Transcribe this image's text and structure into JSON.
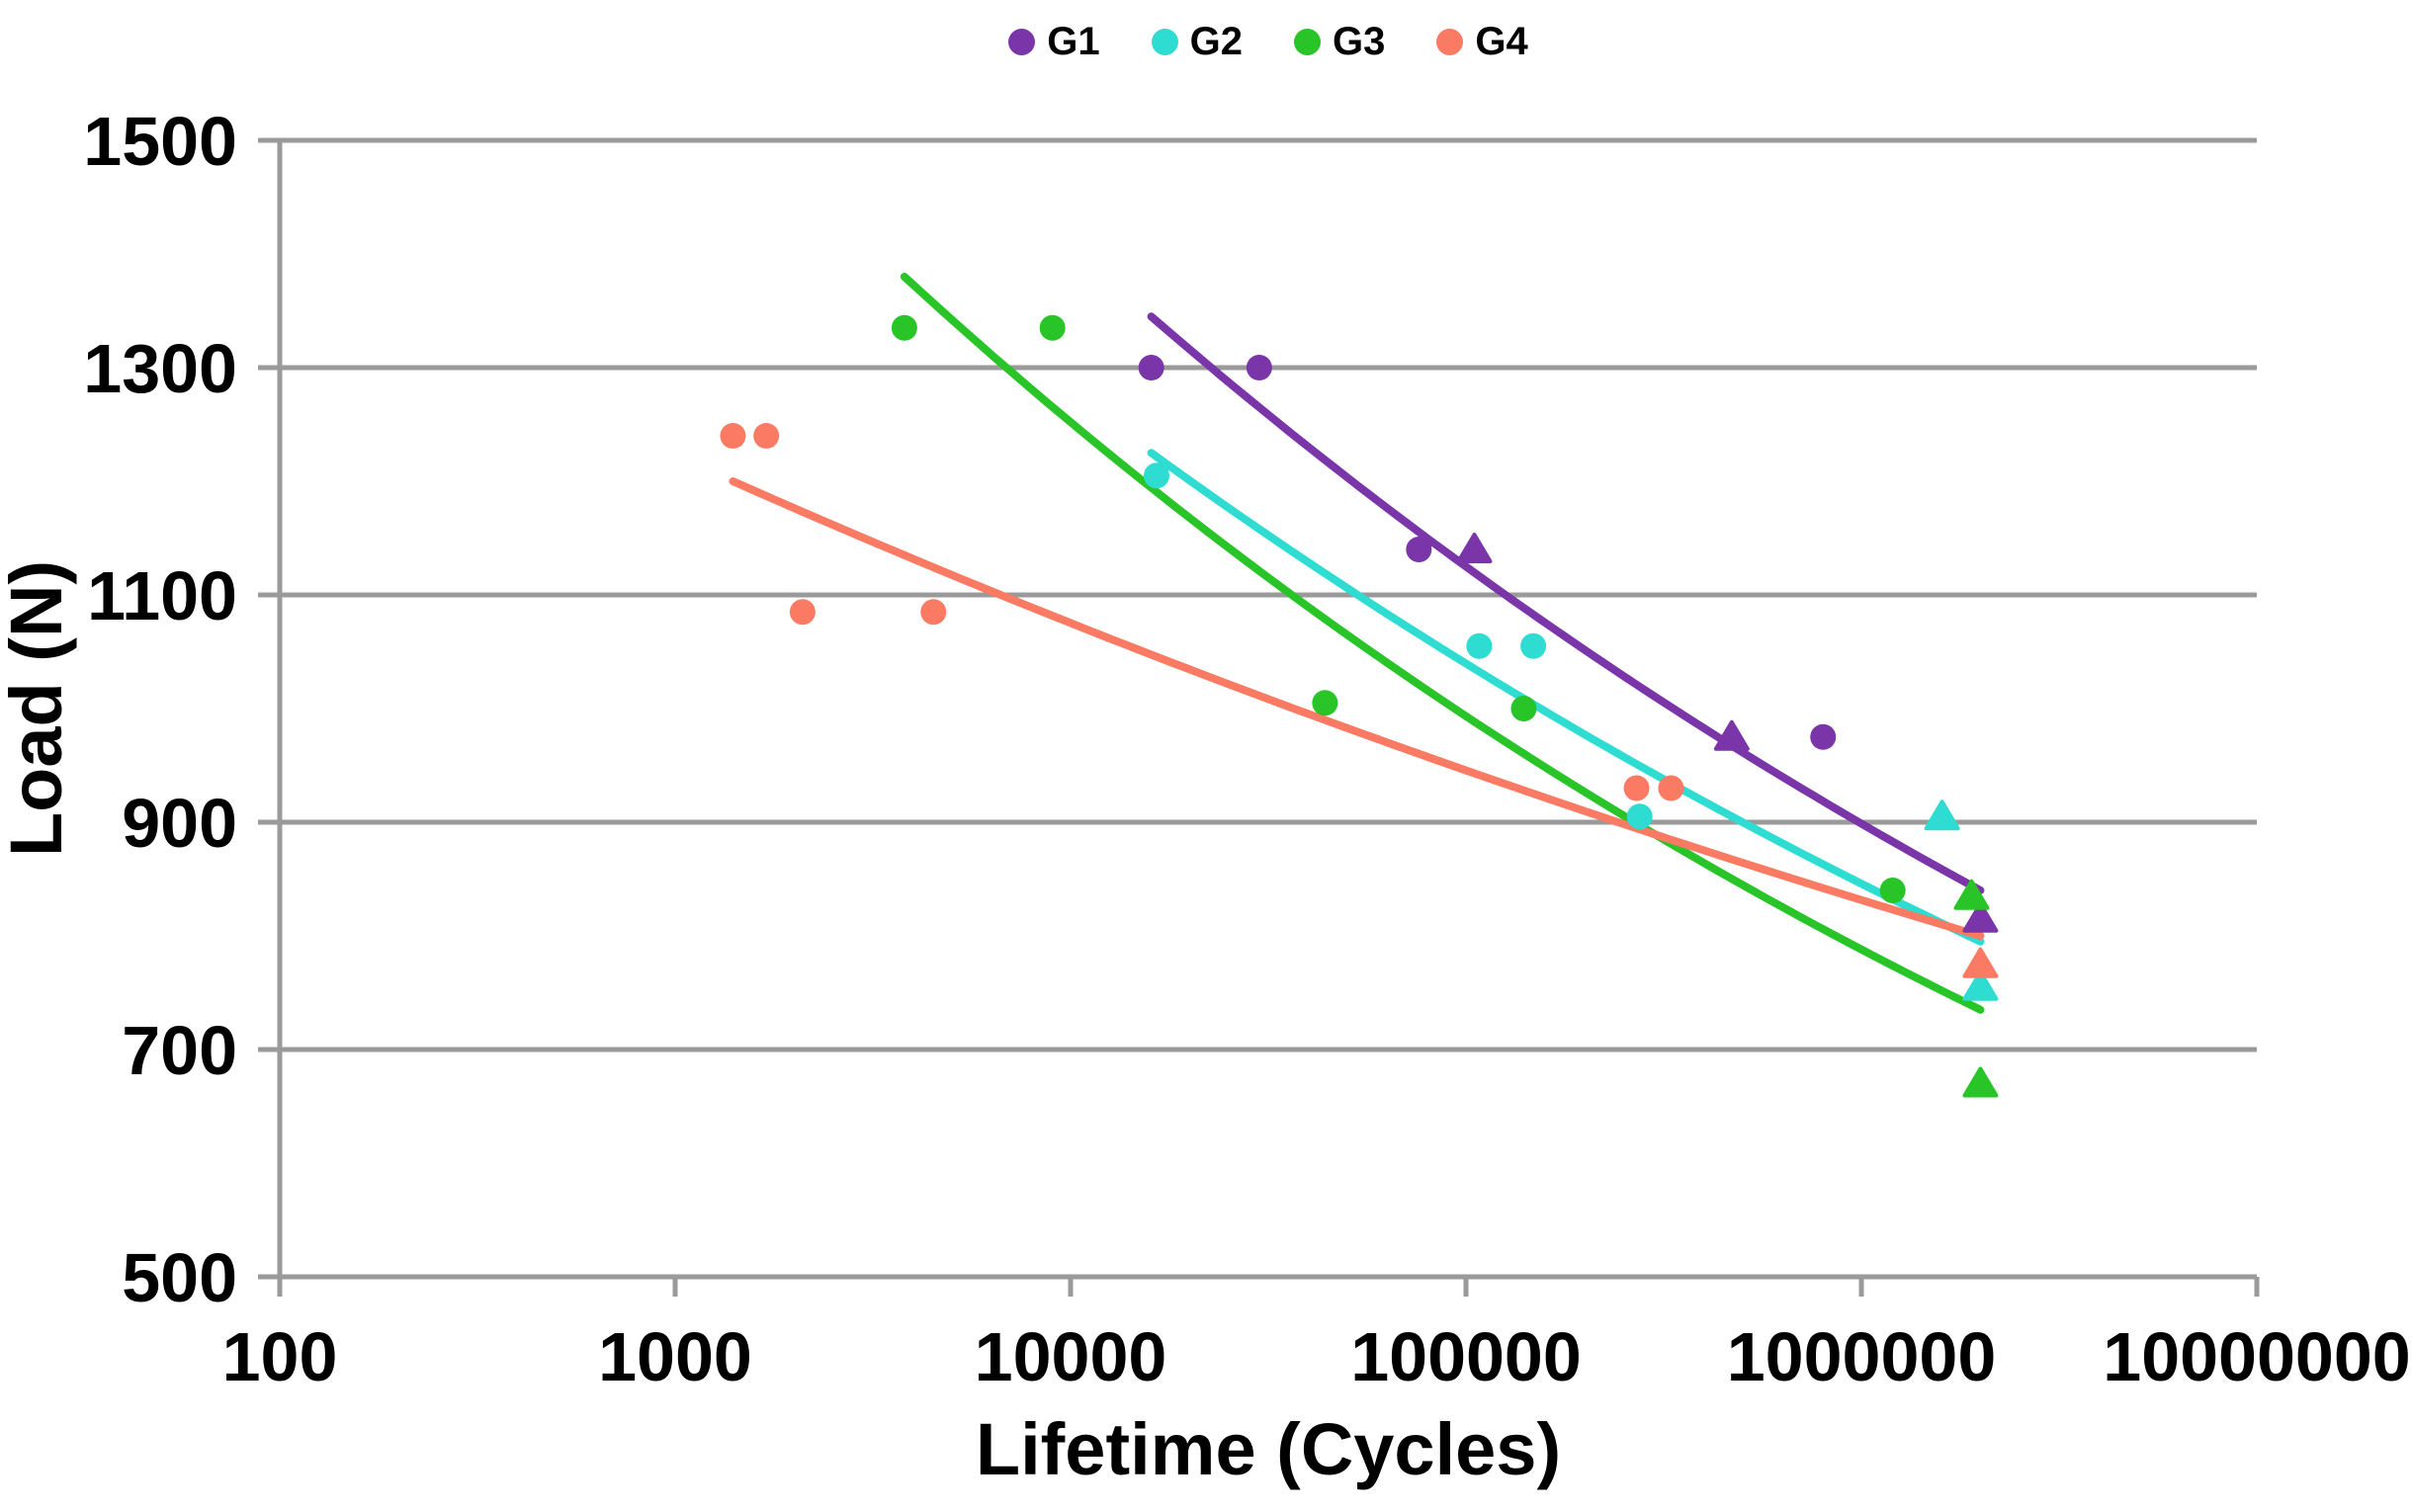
{
  "chart_data": {
    "type": "scatter",
    "title": "",
    "xlabel": "Lifetime (Cycles)",
    "ylabel": "Load (N)",
    "x_scale": "log",
    "y_scale": "linear",
    "xlim": [
      100,
      10000000
    ],
    "ylim": [
      500,
      1500
    ],
    "x_ticks": [
      100,
      1000,
      10000,
      100000,
      1000000,
      10000000
    ],
    "y_ticks": [
      1500,
      1300,
      1100,
      900,
      700,
      500
    ],
    "grid": "horizontal",
    "grid_color": "#9A9A9A",
    "axis_color": "#9A9A9A",
    "text_color": "#000000",
    "legend_position": "top-center",
    "series": [
      {
        "name": "G1",
        "color": "#7A35A8",
        "circles": [
          [
            16000,
            1300
          ],
          [
            30000,
            1300
          ],
          [
            76000,
            1140
          ],
          [
            800000,
            975
          ]
        ],
        "triangles": [
          [
            105000,
            1140
          ],
          [
            470000,
            975
          ],
          [
            2000000,
            815
          ]
        ],
        "trend": {
          "type": "power",
          "x1": 16000,
          "y1": 1345,
          "x2": 2000000,
          "y2": 840
        }
      },
      {
        "name": "G2",
        "color": "#2EDCD2",
        "circles": [
          [
            16500,
            1205
          ],
          [
            108000,
            1055
          ],
          [
            148000,
            1055
          ],
          [
            275000,
            905
          ]
        ],
        "triangles": [
          [
            1600000,
            905
          ],
          [
            2000000,
            755
          ]
        ],
        "trend": {
          "type": "power",
          "x1": 16000,
          "y1": 1225,
          "x2": 2000000,
          "y2": 795
        }
      },
      {
        "name": "G3",
        "color": "#28C428",
        "circles": [
          [
            3800,
            1335
          ],
          [
            9000,
            1335
          ],
          [
            44000,
            1005
          ],
          [
            140000,
            1000
          ],
          [
            1200000,
            840
          ]
        ],
        "triangles": [
          [
            1900000,
            835
          ],
          [
            2000000,
            670
          ]
        ],
        "trend": {
          "type": "power",
          "x1": 3800,
          "y1": 1380,
          "x2": 2000000,
          "y2": 735
        }
      },
      {
        "name": "G4",
        "color": "#FA7A63",
        "circles": [
          [
            1400,
            1240
          ],
          [
            1700,
            1240
          ],
          [
            2100,
            1085
          ],
          [
            4500,
            1085
          ],
          [
            270000,
            930
          ],
          [
            330000,
            930
          ]
        ],
        "triangles": [
          [
            2000000,
            775
          ]
        ],
        "trend": {
          "type": "power",
          "x1": 1400,
          "y1": 1200,
          "x2": 2000000,
          "y2": 800
        }
      }
    ]
  }
}
